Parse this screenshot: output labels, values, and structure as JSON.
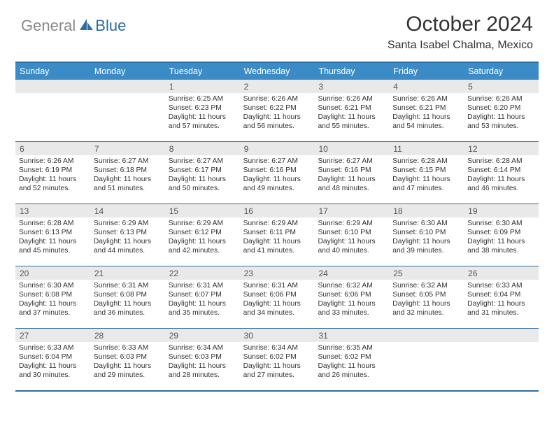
{
  "logo": {
    "general": "General",
    "blue": "Blue"
  },
  "title": "October 2024",
  "location": "Santa Isabel Chalma, Mexico",
  "colors": {
    "header_bg": "#3b8bc7",
    "border": "#2e6ca4",
    "daynum_bg": "#e9e9e9",
    "text": "#333333"
  },
  "dayNames": [
    "Sunday",
    "Monday",
    "Tuesday",
    "Wednesday",
    "Thursday",
    "Friday",
    "Saturday"
  ],
  "weeks": [
    [
      {
        "num": "",
        "text": ""
      },
      {
        "num": "",
        "text": ""
      },
      {
        "num": "1",
        "text": "Sunrise: 6:25 AM\nSunset: 6:23 PM\nDaylight: 11 hours and 57 minutes."
      },
      {
        "num": "2",
        "text": "Sunrise: 6:26 AM\nSunset: 6:22 PM\nDaylight: 11 hours and 56 minutes."
      },
      {
        "num": "3",
        "text": "Sunrise: 6:26 AM\nSunset: 6:21 PM\nDaylight: 11 hours and 55 minutes."
      },
      {
        "num": "4",
        "text": "Sunrise: 6:26 AM\nSunset: 6:21 PM\nDaylight: 11 hours and 54 minutes."
      },
      {
        "num": "5",
        "text": "Sunrise: 6:26 AM\nSunset: 6:20 PM\nDaylight: 11 hours and 53 minutes."
      }
    ],
    [
      {
        "num": "6",
        "text": "Sunrise: 6:26 AM\nSunset: 6:19 PM\nDaylight: 11 hours and 52 minutes."
      },
      {
        "num": "7",
        "text": "Sunrise: 6:27 AM\nSunset: 6:18 PM\nDaylight: 11 hours and 51 minutes."
      },
      {
        "num": "8",
        "text": "Sunrise: 6:27 AM\nSunset: 6:17 PM\nDaylight: 11 hours and 50 minutes."
      },
      {
        "num": "9",
        "text": "Sunrise: 6:27 AM\nSunset: 6:16 PM\nDaylight: 11 hours and 49 minutes."
      },
      {
        "num": "10",
        "text": "Sunrise: 6:27 AM\nSunset: 6:16 PM\nDaylight: 11 hours and 48 minutes."
      },
      {
        "num": "11",
        "text": "Sunrise: 6:28 AM\nSunset: 6:15 PM\nDaylight: 11 hours and 47 minutes."
      },
      {
        "num": "12",
        "text": "Sunrise: 6:28 AM\nSunset: 6:14 PM\nDaylight: 11 hours and 46 minutes."
      }
    ],
    [
      {
        "num": "13",
        "text": "Sunrise: 6:28 AM\nSunset: 6:13 PM\nDaylight: 11 hours and 45 minutes."
      },
      {
        "num": "14",
        "text": "Sunrise: 6:29 AM\nSunset: 6:13 PM\nDaylight: 11 hours and 44 minutes."
      },
      {
        "num": "15",
        "text": "Sunrise: 6:29 AM\nSunset: 6:12 PM\nDaylight: 11 hours and 42 minutes."
      },
      {
        "num": "16",
        "text": "Sunrise: 6:29 AM\nSunset: 6:11 PM\nDaylight: 11 hours and 41 minutes."
      },
      {
        "num": "17",
        "text": "Sunrise: 6:29 AM\nSunset: 6:10 PM\nDaylight: 11 hours and 40 minutes."
      },
      {
        "num": "18",
        "text": "Sunrise: 6:30 AM\nSunset: 6:10 PM\nDaylight: 11 hours and 39 minutes."
      },
      {
        "num": "19",
        "text": "Sunrise: 6:30 AM\nSunset: 6:09 PM\nDaylight: 11 hours and 38 minutes."
      }
    ],
    [
      {
        "num": "20",
        "text": "Sunrise: 6:30 AM\nSunset: 6:08 PM\nDaylight: 11 hours and 37 minutes."
      },
      {
        "num": "21",
        "text": "Sunrise: 6:31 AM\nSunset: 6:08 PM\nDaylight: 11 hours and 36 minutes."
      },
      {
        "num": "22",
        "text": "Sunrise: 6:31 AM\nSunset: 6:07 PM\nDaylight: 11 hours and 35 minutes."
      },
      {
        "num": "23",
        "text": "Sunrise: 6:31 AM\nSunset: 6:06 PM\nDaylight: 11 hours and 34 minutes."
      },
      {
        "num": "24",
        "text": "Sunrise: 6:32 AM\nSunset: 6:06 PM\nDaylight: 11 hours and 33 minutes."
      },
      {
        "num": "25",
        "text": "Sunrise: 6:32 AM\nSunset: 6:05 PM\nDaylight: 11 hours and 32 minutes."
      },
      {
        "num": "26",
        "text": "Sunrise: 6:33 AM\nSunset: 6:04 PM\nDaylight: 11 hours and 31 minutes."
      }
    ],
    [
      {
        "num": "27",
        "text": "Sunrise: 6:33 AM\nSunset: 6:04 PM\nDaylight: 11 hours and 30 minutes."
      },
      {
        "num": "28",
        "text": "Sunrise: 6:33 AM\nSunset: 6:03 PM\nDaylight: 11 hours and 29 minutes."
      },
      {
        "num": "29",
        "text": "Sunrise: 6:34 AM\nSunset: 6:03 PM\nDaylight: 11 hours and 28 minutes."
      },
      {
        "num": "30",
        "text": "Sunrise: 6:34 AM\nSunset: 6:02 PM\nDaylight: 11 hours and 27 minutes."
      },
      {
        "num": "31",
        "text": "Sunrise: 6:35 AM\nSunset: 6:02 PM\nDaylight: 11 hours and 26 minutes."
      },
      {
        "num": "",
        "text": ""
      },
      {
        "num": "",
        "text": ""
      }
    ]
  ]
}
